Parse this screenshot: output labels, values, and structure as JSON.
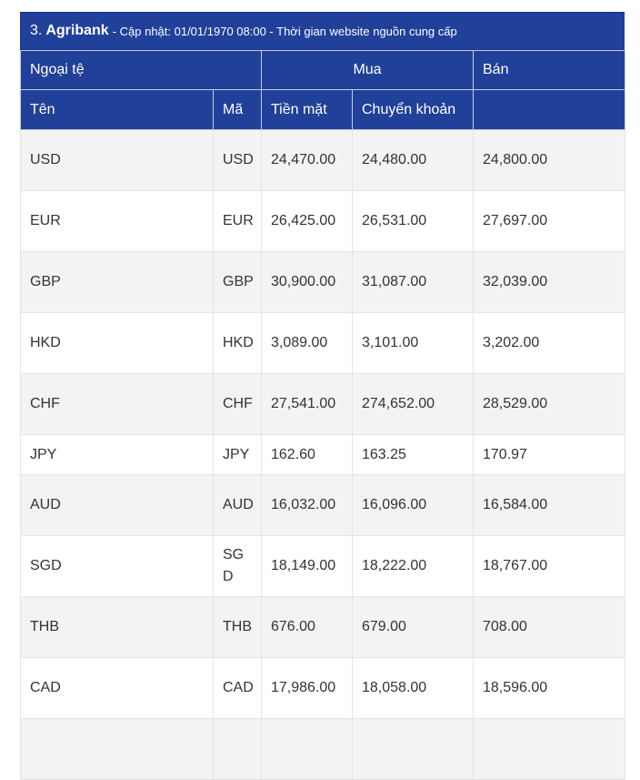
{
  "caption": {
    "number": "3.",
    "bank": "Agribank",
    "info": "- Cập nhật: 01/01/1970 08:00 - Thời gian website nguồn cung cấp"
  },
  "header": {
    "group_currency": "Ngoại tệ",
    "group_buy": "Mua",
    "group_sell": "Bán",
    "col_name": "Tên",
    "col_code": "Mã",
    "col_cash": "Tiền mặt",
    "col_transfer": "Chuyển khoản"
  },
  "rows": [
    {
      "name": "USD",
      "code": "USD",
      "cash": "24,470.00",
      "transfer": "24,480.00",
      "sell": "24,800.00"
    },
    {
      "name": "EUR",
      "code": "EUR",
      "cash": "26,425.00",
      "transfer": "26,531.00",
      "sell": "27,697.00"
    },
    {
      "name": "GBP",
      "code": "GBP",
      "cash": "30,900.00",
      "transfer": "31,087.00",
      "sell": "32,039.00"
    },
    {
      "name": "HKD",
      "code": "HKD",
      "cash": "3,089.00",
      "transfer": "3,101.00",
      "sell": "3,202.00"
    },
    {
      "name": "CHF",
      "code": "CHF",
      "cash": "27,541.00",
      "transfer": "274,652.00",
      "sell": "28,529.00"
    },
    {
      "name": "JPY",
      "code": "JPY",
      "cash": "162.60",
      "transfer": "163.25",
      "sell": "170.97"
    },
    {
      "name": "AUD",
      "code": "AUD",
      "cash": "16,032.00",
      "transfer": "16,096.00",
      "sell": "16,584.00"
    },
    {
      "name": "SGD",
      "code": "SGD",
      "cash": "18,149.00",
      "transfer": "18,222.00",
      "sell": "18,767.00"
    },
    {
      "name": "THB",
      "code": "THB",
      "cash": "676.00",
      "transfer": "679.00",
      "sell": "708.00"
    },
    {
      "name": "CAD",
      "code": "CAD",
      "cash": "17,986.00",
      "transfer": "18,058.00",
      "sell": "18,596.00"
    },
    {
      "name": "",
      "code": "",
      "cash": "",
      "transfer": "",
      "sell": ""
    }
  ]
}
